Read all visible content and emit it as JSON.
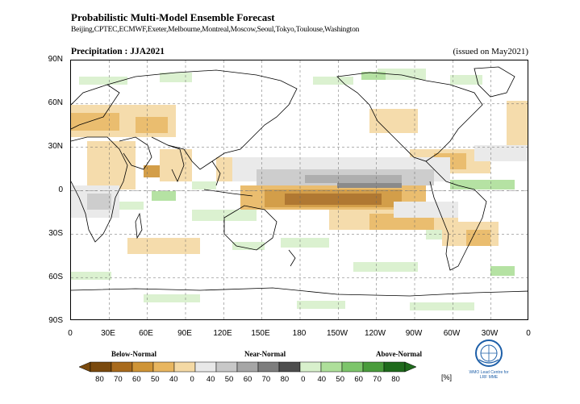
{
  "header": {
    "title": "Probabilistic Multi-Model Ensemble Forecast",
    "centres": "Beijing,CPTEC,ECMWF,Exeter,Melbourne,Montreal,Moscow,Seoul,Tokyo,Toulouse,Washington",
    "variable_title": "Precipitation : JJA2021",
    "issued": "(issued on May2021)"
  },
  "axes": {
    "lat_labels": [
      "90N",
      "60N",
      "30N",
      "0",
      "30S",
      "60S",
      "90S"
    ],
    "lon_labels": [
      "0",
      "30E",
      "60E",
      "90E",
      "120E",
      "150E",
      "180",
      "150W",
      "120W",
      "90W",
      "60W",
      "30W",
      "0"
    ]
  },
  "legend": {
    "categories": [
      "Below-Normal",
      "Near-Normal",
      "Above-Normal"
    ],
    "tick_labels": [
      "80",
      "70",
      "60",
      "50",
      "40",
      "0",
      "40",
      "50",
      "60",
      "70",
      "80",
      "0",
      "40",
      "50",
      "60",
      "70",
      "80"
    ],
    "unit": "[%]",
    "colors_below": [
      "#7a4a0e",
      "#a86a1c",
      "#cf9436",
      "#e8b660",
      "#f4d9a4"
    ],
    "colors_near": [
      "#e8e8e8",
      "#c8c8c8",
      "#a6a6a6",
      "#7e7e7e",
      "#4e4e4e"
    ],
    "colors_above": [
      "#d8f0cc",
      "#aedf9a",
      "#7dc56b",
      "#4a9c3c",
      "#1f6a1c"
    ]
  },
  "logo": {
    "text": "WMO Lead Centre for LRF MME"
  }
}
